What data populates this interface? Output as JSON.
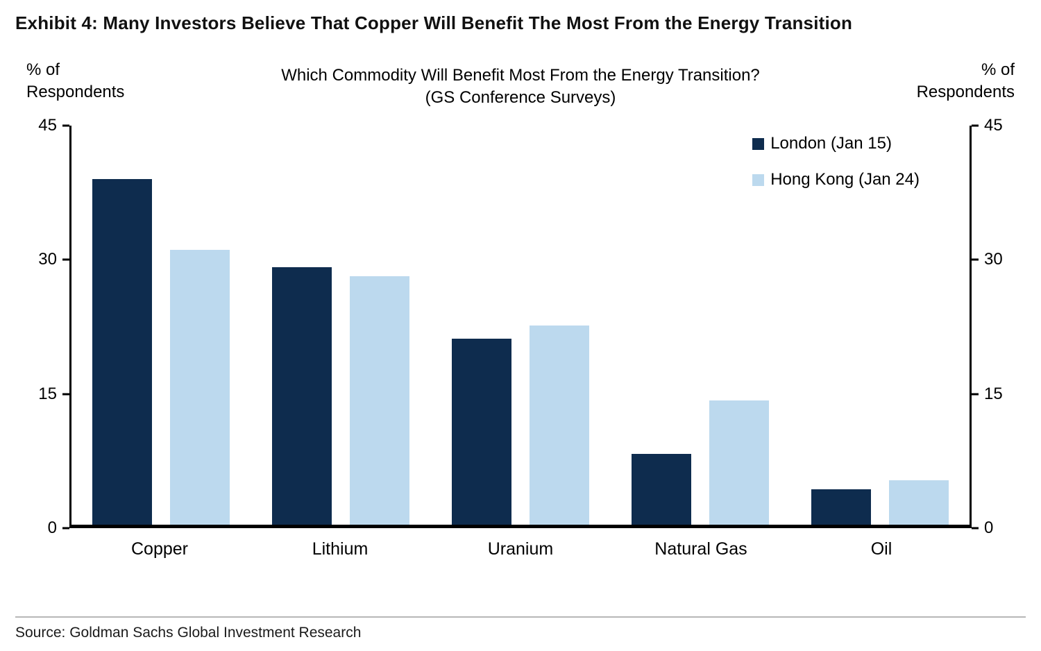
{
  "exhibit_title": "Exhibit 4: Many Investors Believe That Copper Will Benefit The Most From the Energy Transition",
  "axis_caption_left": "% of\nRespondents",
  "axis_caption_right": "% of\nRespondents",
  "source_note": "Source: Goldman Sachs Global Investment Research",
  "colors": {
    "london_navy": "#0E2C4E",
    "hong_kong_light_blue": "#BCD9EE",
    "axis_black": "#000000"
  },
  "chart_data": {
    "type": "bar",
    "title": "Which Commodity Will Benefit Most From the Energy Transition?",
    "subtitle": "(GS Conference Surveys)",
    "categories": [
      "Copper",
      "Lithium",
      "Uranium",
      "Natural Gas",
      "Oil"
    ],
    "series": [
      {
        "name": "London (Jan 15)",
        "color": "#0E2C4E",
        "values": [
          39,
          29,
          21,
          8,
          4
        ]
      },
      {
        "name": "Hong Kong (Jan 24)",
        "color": "#BCD9EE",
        "values": [
          31,
          28,
          22.5,
          14,
          5
        ]
      }
    ],
    "ylabel": "% of Respondents",
    "ylim": [
      0,
      45
    ],
    "yticks": [
      0,
      15,
      30,
      45
    ],
    "legend_position": "top-right",
    "grid": false
  }
}
